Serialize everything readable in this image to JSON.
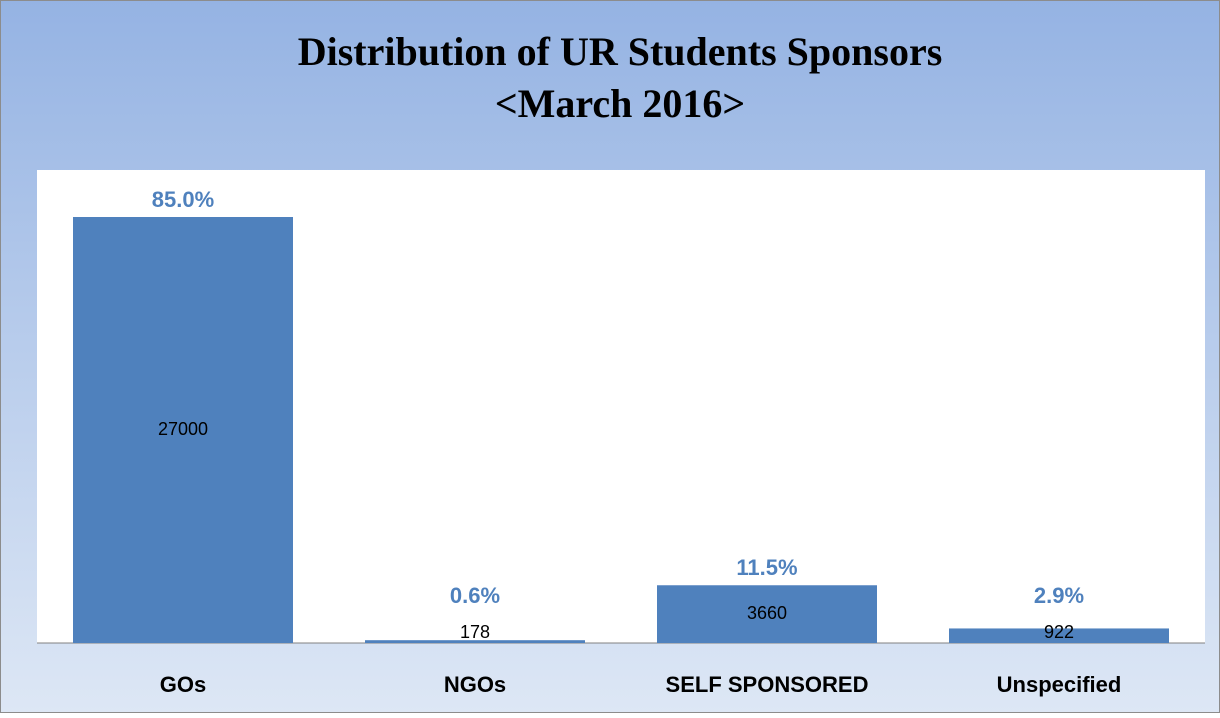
{
  "chart_data": {
    "type": "bar",
    "title": [
      "Distribution of UR Students Sponsors",
      "<March 2016>"
    ],
    "categories": [
      "GOs",
      "NGOs",
      "SELF SPONSORED",
      "Unspecified"
    ],
    "values": [
      27000,
      178,
      3660,
      922
    ],
    "shares": [
      {
        "value": 85.0,
        "label": "85.0%"
      },
      {
        "value": 0.6,
        "label": "0.6%"
      },
      {
        "value": 11.5,
        "label": "11.5%"
      },
      {
        "value": 2.9,
        "label": "2.9%"
      }
    ],
    "color": "#4f81bd"
  }
}
